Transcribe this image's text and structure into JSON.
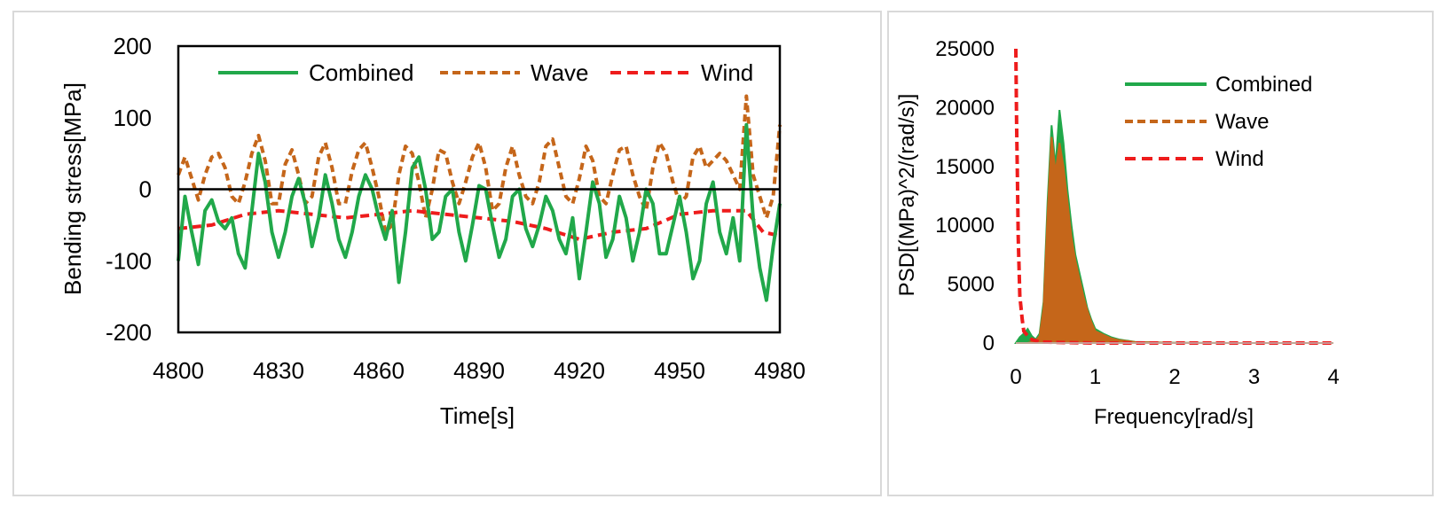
{
  "chart_data": [
    {
      "type": "line",
      "title": "",
      "xlabel": "Time[s]",
      "ylabel": "Bending stress[MPa]",
      "xlim": [
        4800,
        4980
      ],
      "ylim": [
        -200,
        200
      ],
      "xticks": [
        "4800",
        "4830",
        "4860",
        "4890",
        "4920",
        "4950",
        "4980"
      ],
      "yticks": [
        "200",
        "100",
        "0",
        "-100",
        "-200"
      ],
      "legend_position": "top",
      "series": [
        {
          "name": "Combined",
          "color": "#21a84a",
          "style": "solid",
          "x": [
            4800,
            4802,
            4804,
            4806,
            4808,
            4810,
            4812,
            4814,
            4816,
            4818,
            4820,
            4822,
            4824,
            4826,
            4828,
            4830,
            4832,
            4834,
            4836,
            4838,
            4840,
            4842,
            4844,
            4846,
            4848,
            4850,
            4852,
            4854,
            4856,
            4858,
            4860,
            4862,
            4864,
            4866,
            4868,
            4870,
            4872,
            4874,
            4876,
            4878,
            4880,
            4882,
            4884,
            4886,
            4888,
            4890,
            4892,
            4894,
            4896,
            4898,
            4900,
            4902,
            4904,
            4906,
            4908,
            4910,
            4912,
            4914,
            4916,
            4918,
            4920,
            4922,
            4924,
            4926,
            4928,
            4930,
            4932,
            4934,
            4936,
            4938,
            4940,
            4942,
            4944,
            4946,
            4948,
            4950,
            4952,
            4954,
            4956,
            4958,
            4960,
            4962,
            4964,
            4966,
            4968,
            4970,
            4972,
            4974,
            4976,
            4978,
            4980
          ],
          "values": [
            -100,
            -10,
            -60,
            -105,
            -30,
            -15,
            -45,
            -55,
            -40,
            -90,
            -110,
            -30,
            50,
            10,
            -60,
            -95,
            -60,
            -10,
            15,
            -20,
            -80,
            -40,
            20,
            -20,
            -70,
            -95,
            -60,
            -10,
            20,
            0,
            -40,
            -70,
            -30,
            -130,
            -60,
            30,
            45,
            0,
            -70,
            -60,
            -10,
            0,
            -60,
            -100,
            -50,
            5,
            0,
            -50,
            -95,
            -70,
            -10,
            0,
            -55,
            -80,
            -50,
            -10,
            -30,
            -70,
            -90,
            -40,
            -125,
            -60,
            10,
            -20,
            -95,
            -70,
            -10,
            -40,
            -100,
            -60,
            0,
            -20,
            -90,
            -90,
            -50,
            -10,
            -60,
            -125,
            -100,
            -20,
            10,
            -60,
            -90,
            -40,
            -100,
            90,
            -40,
            -110,
            -155,
            -80,
            -20
          ]
        },
        {
          "name": "Wave",
          "color": "#c5661a",
          "style": "dashed",
          "x": [
            4800,
            4802,
            4804,
            4806,
            4808,
            4810,
            4812,
            4814,
            4816,
            4818,
            4820,
            4822,
            4824,
            4826,
            4828,
            4830,
            4832,
            4834,
            4836,
            4838,
            4840,
            4842,
            4844,
            4846,
            4848,
            4850,
            4852,
            4854,
            4856,
            4858,
            4860,
            4862,
            4864,
            4866,
            4868,
            4870,
            4872,
            4874,
            4876,
            4878,
            4880,
            4882,
            4884,
            4886,
            4888,
            4890,
            4892,
            4894,
            4896,
            4898,
            4900,
            4902,
            4904,
            4906,
            4908,
            4910,
            4912,
            4914,
            4916,
            4918,
            4920,
            4922,
            4924,
            4926,
            4928,
            4930,
            4932,
            4934,
            4936,
            4938,
            4940,
            4942,
            4944,
            4946,
            4948,
            4950,
            4952,
            4954,
            4956,
            4958,
            4960,
            4962,
            4964,
            4966,
            4968,
            4970,
            4972,
            4974,
            4976,
            4978,
            4980
          ],
          "values": [
            20,
            45,
            15,
            -15,
            20,
            45,
            50,
            30,
            -10,
            -20,
            10,
            50,
            75,
            40,
            -20,
            -20,
            35,
            55,
            20,
            -20,
            -10,
            45,
            65,
            30,
            -20,
            -20,
            25,
            55,
            65,
            30,
            -10,
            -60,
            -50,
            20,
            60,
            50,
            10,
            -40,
            0,
            55,
            50,
            10,
            -20,
            10,
            45,
            65,
            30,
            -30,
            -20,
            30,
            60,
            20,
            -10,
            -20,
            10,
            60,
            70,
            30,
            -10,
            -20,
            15,
            60,
            40,
            -10,
            -20,
            20,
            55,
            60,
            20,
            -10,
            -30,
            30,
            65,
            50,
            10,
            -20,
            -10,
            45,
            60,
            30,
            40,
            50,
            40,
            20,
            0,
            130,
            20,
            -10,
            -40,
            -10,
            90
          ]
        },
        {
          "name": "Wind",
          "color": "#ee1c1c",
          "style": "dashed",
          "x": [
            4800,
            4810,
            4820,
            4830,
            4840,
            4850,
            4860,
            4870,
            4880,
            4890,
            4900,
            4910,
            4920,
            4930,
            4940,
            4950,
            4960,
            4970,
            4975,
            4980
          ],
          "values": [
            -55,
            -50,
            -35,
            -30,
            -35,
            -40,
            -35,
            -30,
            -35,
            -40,
            -45,
            -55,
            -70,
            -60,
            -55,
            -35,
            -30,
            -30,
            -60,
            -65
          ]
        }
      ]
    },
    {
      "type": "area",
      "title": "",
      "xlabel": "Frequency[rad/s]",
      "ylabel": "PSD[(MPa)^2/(rad/s)]",
      "xlim": [
        0,
        4
      ],
      "ylim": [
        0,
        25000
      ],
      "xticks": [
        "0",
        "1",
        "2",
        "3",
        "4"
      ],
      "yticks": [
        "25000",
        "20000",
        "15000",
        "10000",
        "5000",
        "0"
      ],
      "legend_position": "top-right",
      "series": [
        {
          "name": "Combined",
          "color": "#21a84a",
          "style": "solid",
          "x": [
            0,
            0.05,
            0.1,
            0.15,
            0.2,
            0.25,
            0.3,
            0.35,
            0.4,
            0.45,
            0.5,
            0.55,
            0.6,
            0.65,
            0.7,
            0.75,
            0.8,
            0.85,
            0.9,
            0.95,
            1.0,
            1.1,
            1.2,
            1.3,
            1.5,
            2.0,
            3.0,
            4.0
          ],
          "values": [
            0,
            500,
            800,
            1200,
            600,
            300,
            800,
            3500,
            12000,
            18500,
            15000,
            19800,
            17000,
            13000,
            10000,
            7500,
            6000,
            4500,
            3000,
            2000,
            1200,
            800,
            500,
            300,
            100,
            20,
            0,
            0
          ]
        },
        {
          "name": "Wave",
          "color": "#c5661a",
          "style": "dashed",
          "x": [
            0,
            0.05,
            0.1,
            0.15,
            0.2,
            0.25,
            0.3,
            0.35,
            0.4,
            0.45,
            0.5,
            0.55,
            0.6,
            0.65,
            0.7,
            0.75,
            0.8,
            0.85,
            0.9,
            0.95,
            1.0,
            1.1,
            1.2,
            1.3,
            1.5,
            2.0,
            3.0,
            4.0
          ],
          "values": [
            0,
            0,
            0,
            0,
            100,
            200,
            600,
            3000,
            11000,
            17500,
            14500,
            17000,
            15000,
            12000,
            9000,
            7000,
            5500,
            4000,
            2800,
            1800,
            1000,
            700,
            400,
            250,
            80,
            10,
            0,
            0
          ]
        },
        {
          "name": "Wind",
          "color": "#ee1c1c",
          "style": "dashed",
          "x": [
            0,
            0.01,
            0.02,
            0.03,
            0.05,
            0.08,
            0.1,
            0.15,
            0.2,
            0.3,
            0.5,
            1.0,
            2.0,
            4.0
          ],
          "values": [
            25000,
            18500,
            14000,
            9000,
            4000,
            2000,
            1000,
            600,
            300,
            100,
            50,
            0,
            0,
            0
          ]
        }
      ]
    }
  ]
}
